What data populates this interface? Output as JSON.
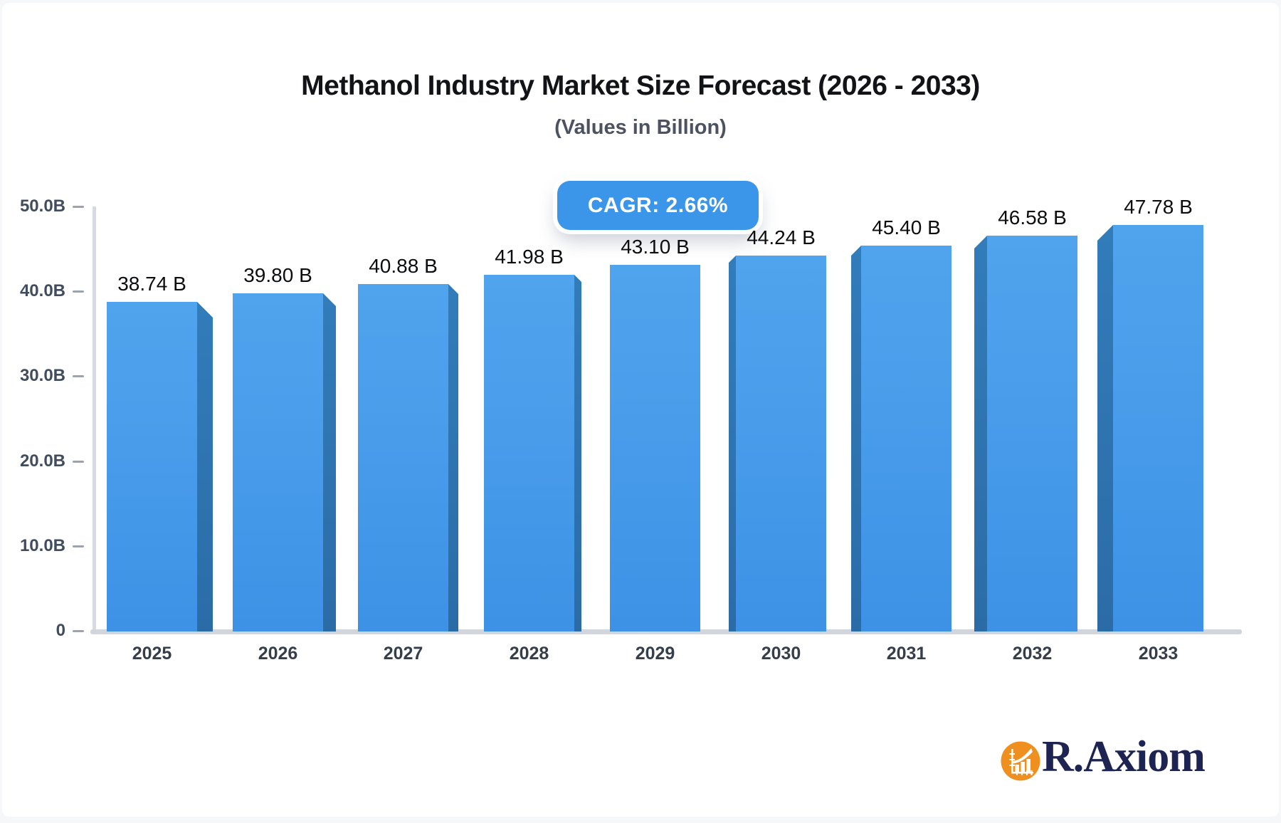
{
  "header": {
    "title": "Methanol Industry Market Size Forecast (2026 - 2033)",
    "subtitle": "(Values in Billion)"
  },
  "badge": {
    "text": "CAGR: 2.66%",
    "bg_color": "#3B96EA",
    "text_color": "#FFFFFF"
  },
  "chart_data": {
    "type": "bar",
    "title": "Methanol Industry Market Size Forecast (2026 - 2033)",
    "subtitle": "(Values in Billion)",
    "annotation": "CAGR: 2.66%",
    "categories": [
      "2025",
      "2026",
      "2027",
      "2028",
      "2029",
      "2030",
      "2031",
      "2032",
      "2033"
    ],
    "values": [
      38.74,
      39.8,
      40.88,
      41.98,
      43.1,
      44.24,
      45.4,
      46.58,
      47.78
    ],
    "bar_labels": [
      "38.74 B",
      "39.80 B",
      "40.88 B",
      "41.98 B",
      "43.10 B",
      "44.24 B",
      "45.40 B",
      "46.58 B",
      "47.78 B"
    ],
    "xlabel": "",
    "ylabel": "",
    "ylim": [
      0,
      50
    ],
    "yticks": [
      50,
      40,
      30,
      20,
      10,
      0
    ],
    "ytick_labels": [
      "50.0B",
      "40.0B",
      "30.0B",
      "20.0B",
      "10.0B",
      "0"
    ],
    "grid": false,
    "legend": false,
    "style": "3d-bars-center-perspective",
    "bar_color": "#4398E9",
    "bar_side_color": "#2E72AD",
    "axis_color": "#D7DAE1"
  },
  "brand": {
    "name": "R.Axiom",
    "icon": "growth-chart-icon",
    "icon_circle_color": "#EE8F1F",
    "text_color": "#1D2452"
  }
}
